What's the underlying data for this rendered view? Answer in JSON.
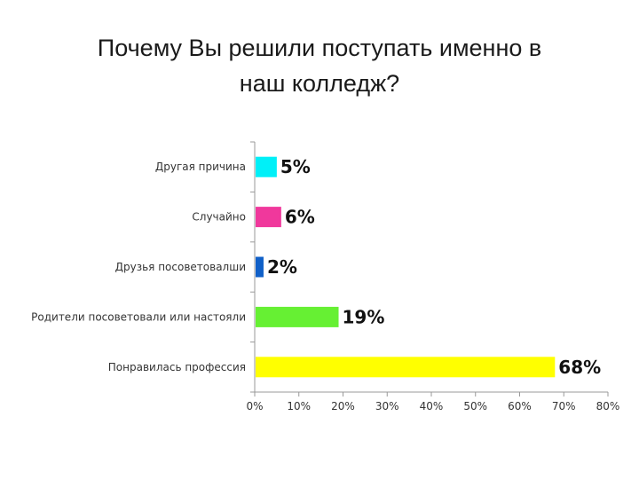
{
  "chart_data": {
    "type": "bar",
    "orientation": "horizontal",
    "title_lines": [
      "Почему Вы решили поступать именно в",
      "наш колледж?"
    ],
    "categories": [
      "Другая причина",
      "Случайно",
      "Друзья посоветовалши",
      "Родители посоветовали или настояли",
      "Понравилась профессия"
    ],
    "values": [
      5,
      6,
      2,
      19,
      68
    ],
    "data_labels": [
      "5%",
      "6%",
      "2%",
      "19%",
      "68%"
    ],
    "colors": [
      "#00f0f8",
      "#f0389c",
      "#1060c8",
      "#66f033",
      "#ffff00"
    ],
    "xlim": [
      0,
      80
    ],
    "x_ticks": [
      0,
      10,
      20,
      30,
      40,
      50,
      60,
      70,
      80
    ],
    "x_tick_labels": [
      "0%",
      "10%",
      "20%",
      "30%",
      "40%",
      "50%",
      "60%",
      "70%",
      "80%"
    ],
    "grid": false,
    "legend": "none"
  }
}
